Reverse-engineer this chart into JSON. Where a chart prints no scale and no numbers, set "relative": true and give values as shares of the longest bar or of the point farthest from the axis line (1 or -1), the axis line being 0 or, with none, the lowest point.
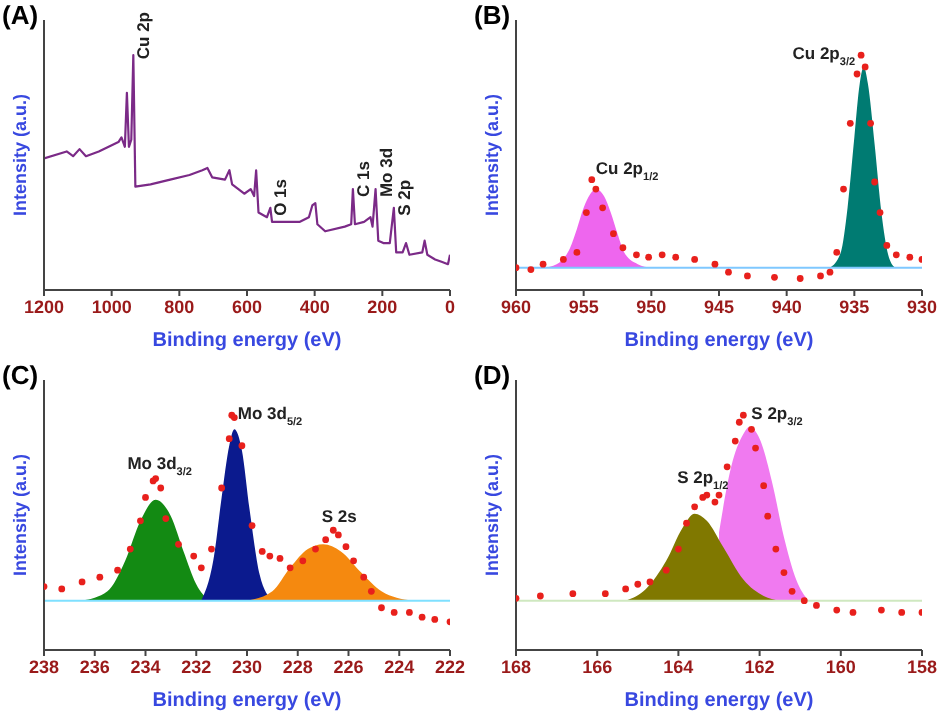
{
  "chart_data": [
    {
      "type": "line",
      "title": "(A)",
      "xlabel": "Binding energy (eV)",
      "ylabel": "Intensity (a.u.)",
      "relative": true,
      "xlim": [
        1200,
        0
      ],
      "xticks": [
        1200,
        1000,
        800,
        600,
        400,
        200,
        0
      ],
      "series": [
        {
          "color": "#7b2a87",
          "x": [
            1200,
            1133,
            1114,
            1095,
            1076,
            1038,
            980,
            971,
            961,
            955,
            949,
            942,
            936,
            930,
            885,
            827,
            770,
            732,
            717,
            703,
            665,
            652,
            644,
            608,
            589,
            579,
            573,
            566,
            541,
            531,
            526,
            483,
            445,
            417,
            407,
            398,
            392,
            369,
            311,
            292,
            287,
            281,
            254,
            235,
            229,
            220,
            212,
            197,
            178,
            166,
            159,
            140,
            130,
            120,
            82,
            75,
            67,
            44,
            25,
            6,
            0
          ],
          "values": [
            0.56,
            0.59,
            0.57,
            0.6,
            0.57,
            0.59,
            0.63,
            0.65,
            0.61,
            0.84,
            0.61,
            0.64,
            1,
            0.44,
            0.45,
            0.47,
            0.49,
            0.51,
            0.52,
            0.48,
            0.47,
            0.51,
            0.45,
            0.41,
            0.43,
            0.4,
            0.51,
            0.33,
            0.31,
            0.35,
            0.29,
            0.29,
            0.29,
            0.31,
            0.36,
            0.37,
            0.28,
            0.25,
            0.27,
            0.28,
            0.43,
            0.28,
            0.29,
            0.31,
            0.27,
            0.43,
            0.21,
            0.2,
            0.2,
            0.35,
            0.16,
            0.16,
            0.2,
            0.15,
            0.16,
            0.21,
            0.15,
            0.13,
            0.12,
            0.11,
            0.15
          ]
        }
      ],
      "annotations": [
        {
          "text": "Cu 2p",
          "x": 936,
          "y": 1
        },
        {
          "text": "O 1s",
          "x": 531,
          "y": 0.35
        },
        {
          "text": "C 1s",
          "x": 287,
          "y": 0.43
        },
        {
          "text": "Mo 3d",
          "x": 220,
          "y": 0.43
        },
        {
          "text": "S 2p",
          "x": 166,
          "y": 0.35
        }
      ]
    },
    {
      "type": "scatter",
      "title": "(B)",
      "xlabel": "Binding energy (eV)",
      "ylabel": "Intensity (a.u.)",
      "relative": true,
      "xlim": [
        960,
        930
      ],
      "xticks": [
        960,
        955,
        950,
        945,
        940,
        935,
        930
      ],
      "ref_lines": [
        {
          "axis": "y",
          "value": 0.095,
          "color": "#7fc8ff"
        }
      ],
      "series": [
        {
          "type": "area",
          "color": "#ee66ee",
          "x": [
            958,
            957,
            956,
            955.5,
            955,
            954.5,
            954.1,
            953.5,
            953,
            952.5,
            952,
            951,
            950
          ],
          "values": [
            0.095,
            0.11,
            0.18,
            0.26,
            0.35,
            0.41,
            0.43,
            0.4,
            0.33,
            0.24,
            0.16,
            0.11,
            0.095
          ]
        },
        {
          "type": "area",
          "color": "#007b72",
          "x": [
            936.8,
            936,
            935.5,
            935,
            934.6,
            934.3,
            934,
            933.5,
            933,
            932.5,
            932
          ],
          "values": [
            0.095,
            0.16,
            0.35,
            0.65,
            0.88,
            0.95,
            0.88,
            0.62,
            0.33,
            0.15,
            0.095
          ]
        },
        {
          "marker": "circle",
          "color": "#e8201c",
          "x": [
            960,
            958.9,
            958,
            956.5,
            955.5,
            954.8,
            954.4,
            954.1,
            953.6,
            952.8,
            952.1,
            951.1,
            950.2,
            949.2,
            948.2,
            946.8,
            945.3,
            944.3,
            942.9,
            940.9,
            939,
            937.5,
            936.8,
            936.3,
            935.8,
            935.3,
            934.8,
            934.5,
            934.2,
            933.8,
            933.5,
            933.1,
            932.6,
            931.9,
            930.9,
            930
          ],
          "values": [
            0.095,
            0.087,
            0.11,
            0.13,
            0.16,
            0.33,
            0.47,
            0.43,
            0.35,
            0.24,
            0.18,
            0.15,
            0.14,
            0.15,
            0.14,
            0.13,
            0.11,
            0.076,
            0.06,
            0.054,
            0.049,
            0.06,
            0.076,
            0.16,
            0.43,
            0.71,
            0.92,
            1,
            0.95,
            0.71,
            0.46,
            0.33,
            0.19,
            0.15,
            0.14,
            0.13
          ]
        }
      ],
      "annotations": [
        {
          "text": "Cu 2p$_{3/2}$",
          "x": 934.5,
          "y": 1
        },
        {
          "text": "Cu 2p$_{1/2}$",
          "x": 954.4,
          "y": 0.47
        }
      ]
    },
    {
      "type": "scatter",
      "title": "(C)",
      "xlabel": "Binding energy (eV)",
      "ylabel": "Intensity (a.u.)",
      "relative": true,
      "xlim": [
        238,
        222
      ],
      "xticks": [
        238,
        236,
        234,
        232,
        230,
        228,
        226,
        224,
        222
      ],
      "ref_lines": [
        {
          "axis": "y",
          "value": 0.21,
          "color": "#7fe0ff"
        }
      ],
      "series": [
        {
          "type": "area",
          "color": "#138a13",
          "x": [
            236.5,
            235.5,
            234.8,
            234.2,
            233.6,
            233,
            232.5,
            232,
            231.5
          ],
          "values": [
            0.21,
            0.25,
            0.38,
            0.55,
            0.64,
            0.57,
            0.42,
            0.28,
            0.21
          ]
        },
        {
          "type": "area",
          "color": "#0b1a8e",
          "x": [
            231.8,
            231.3,
            231,
            230.7,
            230.5,
            230.2,
            229.9,
            229.5,
            229
          ],
          "values": [
            0.21,
            0.4,
            0.65,
            0.87,
            0.94,
            0.85,
            0.6,
            0.32,
            0.21
          ]
        },
        {
          "type": "area",
          "color": "#f5890f",
          "x": [
            230,
            229,
            228.3,
            227.6,
            227,
            226.3,
            225.5,
            224.7,
            223.5
          ],
          "values": [
            0.21,
            0.25,
            0.35,
            0.43,
            0.45,
            0.42,
            0.33,
            0.25,
            0.21
          ]
        },
        {
          "marker": "circle",
          "color": "#e8201c",
          "x": [
            238,
            237.3,
            236.5,
            235.8,
            235.1,
            234.6,
            234.2,
            234,
            233.7,
            233.6,
            233.4,
            233.2,
            232.7,
            232.1,
            231.8,
            231.4,
            231,
            230.7,
            230.6,
            230.5,
            230.2,
            229.8,
            229.4,
            229.1,
            228.7,
            228.3,
            227.8,
            227.3,
            226.9,
            226.6,
            226.4,
            226.1,
            225.8,
            225.4,
            225.1,
            224.7,
            224.2,
            223.6,
            223.1,
            222.6,
            222
          ],
          "values": [
            0.27,
            0.26,
            0.29,
            0.31,
            0.34,
            0.43,
            0.55,
            0.65,
            0.72,
            0.73,
            0.69,
            0.56,
            0.45,
            0.4,
            0.35,
            0.43,
            0.69,
            0.9,
            1,
            0.99,
            0.87,
            0.53,
            0.42,
            0.4,
            0.39,
            0.35,
            0.38,
            0.43,
            0.47,
            0.51,
            0.49,
            0.44,
            0.38,
            0.31,
            0.25,
            0.18,
            0.16,
            0.16,
            0.14,
            0.13,
            0.12
          ]
        }
      ],
      "annotations": [
        {
          "text": "Mo 3d$_{3/2}$",
          "x": 233.6,
          "y": 0.73
        },
        {
          "text": "Mo 3d$_{5/2}$",
          "x": 230.6,
          "y": 1
        },
        {
          "text": "S 2s",
          "x": 226.6,
          "y": 0.51
        }
      ]
    },
    {
      "type": "scatter",
      "title": "(D)",
      "xlabel": "Binding energy (eV)",
      "ylabel": "Intensity (a.u.)",
      "relative": true,
      "xlim": [
        168,
        158
      ],
      "xticks": [
        168,
        166,
        164,
        162,
        160,
        158
      ],
      "ref_lines": [
        {
          "axis": "y",
          "value": 0.21,
          "color": "#cfe8c0"
        }
      ],
      "series": [
        {
          "type": "area",
          "color": "#f07af0",
          "x": [
            163,
            162.7,
            162.4,
            162.25,
            162,
            161.7,
            161.4,
            161.1,
            160.8
          ],
          "values": [
            0.5,
            0.78,
            0.92,
            0.95,
            0.9,
            0.72,
            0.48,
            0.3,
            0.21
          ]
        },
        {
          "type": "area",
          "color": "#807800",
          "x": [
            165.3,
            164.8,
            164.3,
            163.9,
            163.6,
            163.3,
            162.9,
            162.4,
            161.9,
            161.5
          ],
          "values": [
            0.21,
            0.26,
            0.38,
            0.52,
            0.58,
            0.55,
            0.44,
            0.3,
            0.23,
            0.21
          ]
        },
        {
          "marker": "circle",
          "color": "#e8201c",
          "x": [
            168,
            167.4,
            166.6,
            165.8,
            165.3,
            165,
            164.7,
            164.3,
            164,
            163.8,
            163.6,
            163.4,
            163.3,
            163.1,
            163,
            162.8,
            162.6,
            162.5,
            162.4,
            162.2,
            162.1,
            161.9,
            161.8,
            161.6,
            161.4,
            161.2,
            160.9,
            160.6,
            160.1,
            159.7,
            159,
            158.5,
            158
          ],
          "values": [
            0.22,
            0.23,
            0.24,
            0.24,
            0.26,
            0.28,
            0.29,
            0.34,
            0.43,
            0.54,
            0.61,
            0.65,
            0.66,
            0.63,
            0.66,
            0.78,
            0.89,
            0.97,
            1,
            0.94,
            0.86,
            0.7,
            0.57,
            0.43,
            0.33,
            0.25,
            0.21,
            0.19,
            0.17,
            0.16,
            0.17,
            0.16,
            0.16
          ]
        }
      ],
      "annotations": [
        {
          "text": "S 2p$_{1/2}$",
          "x": 163.3,
          "y": 0.66
        },
        {
          "text": "S 2p$_{3/2}$",
          "x": 162.4,
          "y": 1
        }
      ]
    }
  ]
}
